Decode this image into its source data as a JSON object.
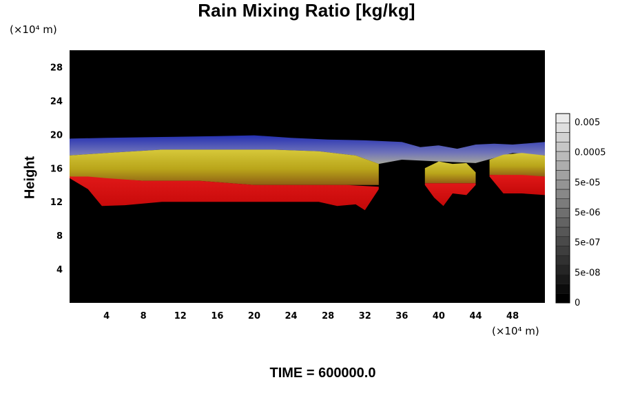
{
  "chart_data": {
    "type": "heatmap",
    "title": "Rain Mixing Ratio [kg/kg]",
    "xlabel": "",
    "ylabel": "Height",
    "x_unit": "(×10⁴ m)",
    "y_unit": "(×10⁴ m)",
    "xlim": [
      0,
      51.5
    ],
    "ylim": [
      0,
      30
    ],
    "x_ticks": [
      4,
      8,
      12,
      16,
      20,
      24,
      28,
      32,
      36,
      40,
      44,
      48
    ],
    "y_ticks": [
      4,
      8,
      12,
      16,
      20,
      24,
      28
    ],
    "background_color": "#000000",
    "colorbar": {
      "scale": "log",
      "levels": [
        "0",
        "5e-08",
        "5e-07",
        "5e-06",
        "5e-05",
        "0.0005",
        "0.005"
      ]
    },
    "bands": [
      {
        "name": "red",
        "color": "#d90f0f",
        "segments": [
          {
            "x": [
              0,
              2,
              3.5,
              6,
              10,
              16,
              22,
              27,
              29,
              31,
              32,
              33.5,
              33.5,
              30,
              25,
              20,
              14,
              8,
              4,
              2,
              0
            ],
            "bottom": [
              14.8,
              13.5,
              11.5,
              11.6,
              12,
              12,
              12,
              12,
              11.5,
              11.7,
              11,
              13.5,
              13.8,
              14,
              14,
              14,
              14.5,
              14.5,
              14.8,
              15,
              15
            ]
          },
          {
            "x": [
              38.5,
              39.5,
              40.5,
              41.5,
              43,
              44,
              44,
              42.5,
              41,
              40,
              38.5
            ],
            "bottom": [
              14,
              12.5,
              11.5,
              13,
              12.8,
              14,
              14.2,
              14.2,
              14.2,
              14.2,
              14.2
            ]
          },
          {
            "x": [
              45.5,
              47,
              49,
              51.5,
              51.5,
              49,
              47,
              45.5
            ],
            "bottom": [
              15,
              13,
              13,
              12.8,
              15,
              15.2,
              15.2,
              15.2
            ]
          }
        ]
      },
      {
        "name": "yellow",
        "color": "#c9b21c",
        "segments": [
          {
            "x": [
              0,
              4,
              10,
              16,
              22,
              27,
              31,
              33.5,
              33.5,
              30,
              25,
              20,
              14,
              8,
              3,
              0
            ],
            "top": [
              17.5,
              17.8,
              18.2,
              18.2,
              18.2,
              18,
              17.5,
              16.5,
              14,
              14,
              14,
              14,
              14.5,
              14.5,
              14.8,
              15
            ]
          },
          {
            "x": [
              38.5,
              40,
              41.5,
              43,
              44,
              44,
              38.5
            ],
            "top": [
              16,
              16.8,
              16.5,
              16.6,
              15.5,
              14.2,
              14.2
            ]
          },
          {
            "x": [
              45.5,
              47,
              49,
              51.5,
              51.5,
              45.5
            ],
            "top": [
              17,
              17.6,
              17.8,
              17.5,
              15,
              15.2
            ]
          }
        ]
      },
      {
        "name": "blue",
        "color": "#2e35b8",
        "segments": [
          {
            "x": [
              0,
              4,
              10,
              16,
              20,
              24,
              28,
              32,
              36,
              38,
              40,
              42,
              44,
              46,
              48,
              51.5,
              51.5,
              48,
              44,
              40,
              36,
              33.5,
              31,
              27,
              22,
              16,
              10,
              4,
              0
            ],
            "top": [
              19.5,
              19.6,
              19.7,
              19.8,
              19.9,
              19.6,
              19.4,
              19.3,
              19.1,
              18.5,
              18.7,
              18.3,
              18.8,
              18.9,
              18.8,
              19.1,
              17.5,
              17.8,
              16.6,
              16.8,
              17,
              16.5,
              17.5,
              18,
              18.2,
              18.2,
              18.2,
              17.8,
              17.5
            ]
          }
        ]
      }
    ]
  },
  "labels": {
    "time": "TIME = 600000.0"
  }
}
